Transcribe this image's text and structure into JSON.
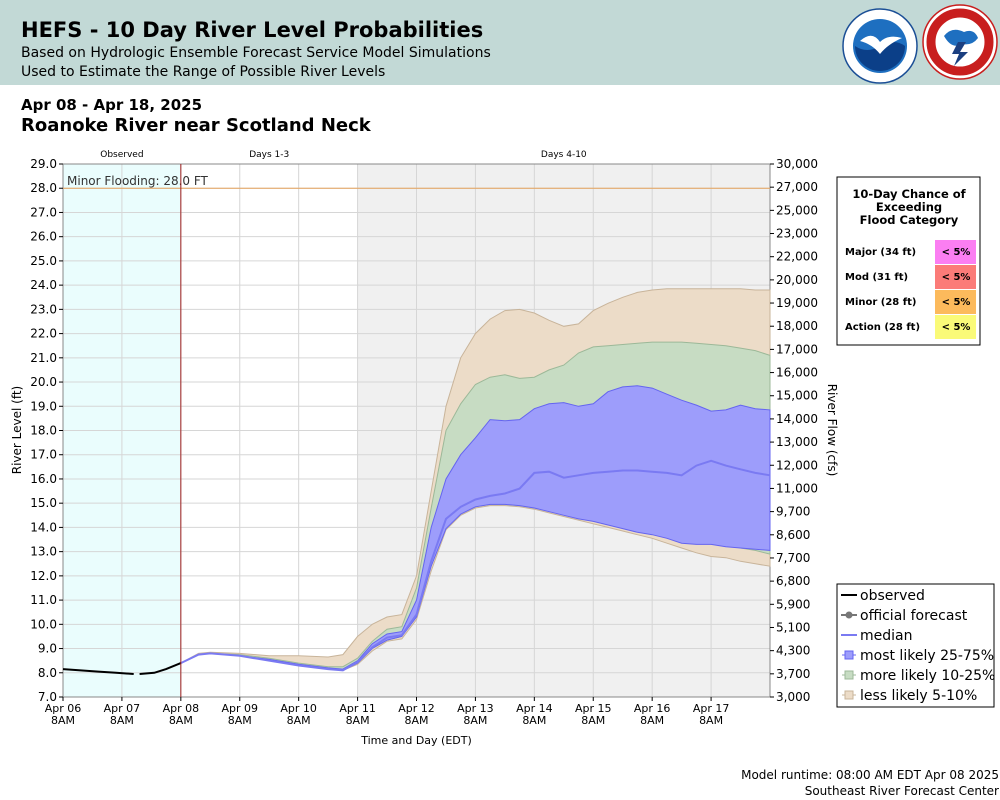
{
  "header": {
    "title": "HEFS - 10 Day River Level Probabilities",
    "subtitle_1": "Based on Hydrologic Ensemble Forecast Service Model Simulations",
    "subtitle_2": "Used to Estimate the Range of Possible River Levels",
    "logos": [
      "noaa-logo",
      "nws-logo"
    ],
    "background_color": "#c2d9d6"
  },
  "date_range": "Apr 08 - Apr 18, 2025",
  "location": "Roanoke River near Scotland Neck",
  "footer": {
    "runtime": "Model runtime: 08:00 AM EDT Apr 08 2025",
    "center": "Southeast River Forecast Center"
  },
  "chart_data": {
    "type": "area",
    "xlabel": "Time and Day (EDT)",
    "ylabel": "River Level (ft)",
    "ylabel_right": "River Flow (cfs)",
    "ylim": [
      7.0,
      29.0
    ],
    "xlim": [
      0,
      12
    ],
    "x_unit": "days since Apr 06 8AM",
    "grid": true,
    "y_ticks": [
      7.0,
      8.0,
      9.0,
      10.0,
      11.0,
      12.0,
      13.0,
      14.0,
      15.0,
      16.0,
      17.0,
      18.0,
      19.0,
      20.0,
      21.0,
      22.0,
      23.0,
      24.0,
      25.0,
      26.0,
      27.0,
      28.0,
      29.0
    ],
    "y_tick_labels": [
      "7.0",
      "8.0",
      "9.0",
      "10.0",
      "11.0",
      "12.0",
      "13.0",
      "14.0",
      "15.0",
      "16.0",
      "17.0",
      "18.0",
      "19.0",
      "20.0",
      "21.0",
      "22.0",
      "23.0",
      "24.0",
      "25.0",
      "26.0",
      "27.0",
      "28.0",
      "29.0"
    ],
    "flow_tick_labels": [
      "3,000",
      "3,700",
      "4,300",
      "5,100",
      "5,900",
      "6,800",
      "7,700",
      "8,600",
      "9,700",
      "11,000",
      "12,000",
      "13,000",
      "14,000",
      "15,000",
      "16,000",
      "17,000",
      "18,000",
      "19,000",
      "20,000",
      "22,000",
      "23,000",
      "25,000",
      "27,000",
      "30,000"
    ],
    "x_ticks": [
      {
        "day": "Apr 06",
        "time": "8AM"
      },
      {
        "day": "Apr 07",
        "time": "8AM"
      },
      {
        "day": "Apr 08",
        "time": "8AM"
      },
      {
        "day": "Apr 09",
        "time": "8AM"
      },
      {
        "day": "Apr 10",
        "time": "8AM"
      },
      {
        "day": "Apr 11",
        "time": "8AM"
      },
      {
        "day": "Apr 12",
        "time": "8AM"
      },
      {
        "day": "Apr 13",
        "time": "8AM"
      },
      {
        "day": "Apr 14",
        "time": "8AM"
      },
      {
        "day": "Apr 15",
        "time": "8AM"
      },
      {
        "day": "Apr 16",
        "time": "8AM"
      },
      {
        "day": "Apr 17",
        "time": "8AM"
      }
    ],
    "periods": [
      {
        "label": "Observed",
        "start": 0,
        "end": 2,
        "color": "#eafdfd"
      },
      {
        "label": "Days 1-3",
        "start": 2,
        "end": 5,
        "color": "#ffffff"
      },
      {
        "label": "Days 4-10",
        "start": 5,
        "end": 12,
        "color": "#f0f0f0"
      }
    ],
    "flood_line": {
      "label": "Minor Flooding: 28.0 FT",
      "value": 28.0,
      "color": "#e6a35c"
    },
    "x": [
      2.0,
      2.3,
      2.5,
      3.0,
      3.5,
      4.0,
      4.5,
      4.75,
      5.0,
      5.25,
      5.5,
      5.75,
      6.0,
      6.25,
      6.5,
      6.75,
      7.0,
      7.25,
      7.5,
      7.75,
      8.0,
      8.25,
      8.5,
      8.75,
      9.0,
      9.25,
      9.5,
      9.75,
      10.0,
      10.25,
      10.5,
      10.75,
      11.0,
      11.25,
      11.5,
      11.75,
      12.0
    ],
    "series": [
      {
        "name": "less likely 5-10%",
        "role": "band",
        "color": "#ecdcc8",
        "stroke": "#c8b49a",
        "upper": [
          8.4,
          8.8,
          8.85,
          8.8,
          8.7,
          8.7,
          8.65,
          8.75,
          9.5,
          10.0,
          10.3,
          10.4,
          12.0,
          15.5,
          19.0,
          21.0,
          22.0,
          22.6,
          22.95,
          23.0,
          22.85,
          22.55,
          22.3,
          22.4,
          22.95,
          23.25,
          23.5,
          23.7,
          23.8,
          23.85,
          23.85,
          23.85,
          23.85,
          23.85,
          23.85,
          23.8,
          23.8
        ],
        "lower": [
          8.4,
          8.75,
          8.8,
          8.7,
          8.5,
          8.3,
          8.15,
          8.1,
          8.35,
          8.9,
          9.3,
          9.4,
          10.2,
          12.2,
          13.9,
          14.5,
          14.8,
          14.9,
          14.9,
          14.85,
          14.75,
          14.6,
          14.45,
          14.3,
          14.15,
          14.0,
          13.85,
          13.7,
          13.55,
          13.35,
          13.15,
          12.95,
          12.8,
          12.75,
          12.6,
          12.5,
          12.4
        ]
      },
      {
        "name": "more likely 10-25%",
        "role": "band",
        "color": "#c7dcc3",
        "stroke": "#9cb898",
        "upper": [
          8.4,
          8.75,
          8.8,
          8.75,
          8.6,
          8.4,
          8.25,
          8.25,
          8.6,
          9.3,
          9.8,
          9.9,
          11.5,
          14.8,
          18.0,
          19.1,
          19.9,
          20.2,
          20.3,
          20.15,
          20.2,
          20.5,
          20.7,
          21.2,
          21.45,
          21.5,
          21.55,
          21.6,
          21.65,
          21.65,
          21.65,
          21.6,
          21.55,
          21.5,
          21.4,
          21.3,
          21.1
        ],
        "lower": [
          8.4,
          8.75,
          8.8,
          8.7,
          8.5,
          8.3,
          8.15,
          8.1,
          8.4,
          9.0,
          9.35,
          9.5,
          10.4,
          12.5,
          14.0,
          14.55,
          14.85,
          14.95,
          14.95,
          14.9,
          14.8,
          14.7,
          14.6,
          14.5,
          14.4,
          14.3,
          14.2,
          14.1,
          13.95,
          13.8,
          13.65,
          13.5,
          13.35,
          13.3,
          13.15,
          13.05,
          12.9
        ]
      },
      {
        "name": "most likely 25-75%",
        "role": "band",
        "color": "#9d9dfb",
        "stroke": "#6464f0",
        "upper": [
          8.4,
          8.75,
          8.8,
          8.7,
          8.55,
          8.35,
          8.2,
          8.15,
          8.5,
          9.2,
          9.6,
          9.7,
          11.0,
          14.0,
          16.0,
          17.0,
          17.7,
          18.45,
          18.4,
          18.45,
          18.9,
          19.1,
          19.15,
          19.0,
          19.1,
          19.6,
          19.8,
          19.85,
          19.75,
          19.5,
          19.25,
          19.05,
          18.8,
          18.85,
          19.05,
          18.9,
          18.85
        ],
        "lower": [
          8.4,
          8.75,
          8.8,
          8.7,
          8.5,
          8.3,
          8.15,
          8.1,
          8.4,
          9.0,
          9.35,
          9.5,
          10.3,
          12.4,
          13.95,
          14.55,
          14.85,
          14.95,
          14.95,
          14.9,
          14.8,
          14.65,
          14.5,
          14.35,
          14.25,
          14.1,
          13.95,
          13.8,
          13.7,
          13.55,
          13.35,
          13.3,
          13.3,
          13.2,
          13.15,
          13.1,
          13.05
        ]
      },
      {
        "name": "median",
        "role": "line",
        "color": "#7a7af2",
        "values": [
          8.4,
          8.75,
          8.8,
          8.7,
          8.5,
          8.3,
          8.15,
          8.1,
          8.45,
          9.05,
          9.45,
          9.55,
          10.4,
          12.6,
          14.35,
          14.85,
          15.15,
          15.3,
          15.4,
          15.6,
          16.25,
          16.3,
          16.05,
          16.15,
          16.25,
          16.3,
          16.35,
          16.35,
          16.3,
          16.25,
          16.15,
          16.55,
          16.75,
          16.55,
          16.4,
          16.25,
          16.15
        ]
      },
      {
        "name": "observed",
        "role": "line",
        "color": "#000000",
        "x": [
          0.0,
          0.3,
          0.6,
          0.9,
          1.2,
          1.3,
          1.55,
          1.75,
          2.0
        ],
        "values": [
          8.15,
          8.1,
          8.05,
          8.0,
          7.95,
          7.95,
          8.0,
          8.15,
          8.4
        ]
      },
      {
        "name": "official forecast",
        "role": "legend-only",
        "color": "#777777"
      }
    ],
    "side_panel": {
      "title_lines": [
        "10-Day Chance of",
        "Exceeding",
        "Flood Category"
      ],
      "rows": [
        {
          "label": "Major (34 ft)",
          "value": "< 5%",
          "color": "#fb7ef2"
        },
        {
          "label": "Mod (31 ft)",
          "value": "< 5%",
          "color": "#fb7b78"
        },
        {
          "label": "Minor (28 ft)",
          "value": "< 5%",
          "color": "#fcba5c"
        },
        {
          "label": "Action (28 ft)",
          "value": "< 5%",
          "color": "#fafa78"
        }
      ]
    },
    "legend": [
      {
        "label": "observed",
        "marker": "line",
        "color": "#000000"
      },
      {
        "label": "official forecast",
        "marker": "line-dot",
        "color": "#777777"
      },
      {
        "label": "median",
        "marker": "line",
        "color": "#7a7af2"
      },
      {
        "label": "most likely 25-75%",
        "marker": "square",
        "color": "#9d9dfb",
        "stroke": "#6464f0"
      },
      {
        "label": "more likely 10-25%",
        "marker": "square",
        "color": "#c7dcc3",
        "stroke": "#9cb898"
      },
      {
        "label": "less likely 5-10%",
        "marker": "square",
        "color": "#ecdcc8",
        "stroke": "#c8b49a"
      }
    ]
  }
}
